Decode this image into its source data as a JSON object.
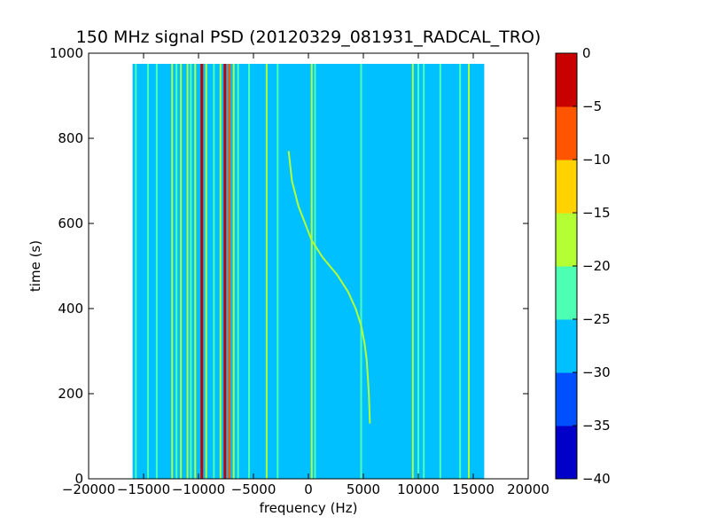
{
  "chart_data": {
    "type": "heatmap",
    "title": "150 MHz signal PSD (20120329_081931_RADCAL_TRO)",
    "xlabel": "frequency (Hz)",
    "ylabel": "time (s)",
    "xlim": [
      -20000,
      20000
    ],
    "ylim": [
      0,
      1000
    ],
    "x_ticks": [
      "−20000",
      "−15000",
      "−10000",
      "−5000",
      "0",
      "5000",
      "10000",
      "15000",
      "20000"
    ],
    "x_tick_values": [
      -20000,
      -15000,
      -10000,
      -5000,
      0,
      5000,
      10000,
      15000,
      20000
    ],
    "y_ticks": [
      "0",
      "200",
      "400",
      "600",
      "800",
      "1000"
    ],
    "y_tick_values": [
      0,
      200,
      400,
      600,
      800,
      1000
    ],
    "data_extent": {
      "freq_hz": [
        -16000,
        16000
      ],
      "time_s": [
        0,
        975
      ]
    },
    "background_level": -28,
    "colorbar": {
      "levels": [
        -40,
        -35,
        -30,
        -25,
        -20,
        -15,
        -10,
        -5,
        0
      ],
      "tick_labels": [
        "−40",
        "−35",
        "−30",
        "−25",
        "−20",
        "−15",
        "−10",
        "−5",
        "0"
      ],
      "colors": [
        "#0000c8",
        "#0050ff",
        "#00c0ff",
        "#4dffb3",
        "#b3ff33",
        "#ffd200",
        "#ff5500",
        "#c80000"
      ]
    },
    "vertical_lines": [
      {
        "freq": -15700,
        "level": -25
      },
      {
        "freq": -14600,
        "level": -22
      },
      {
        "freq": -13800,
        "level": -22
      },
      {
        "freq": -12400,
        "level": -18
      },
      {
        "freq": -12000,
        "level": -22
      },
      {
        "freq": -11600,
        "level": -18
      },
      {
        "freq": -11000,
        "level": -18
      },
      {
        "freq": -10700,
        "level": -22
      },
      {
        "freq": -10300,
        "level": -18
      },
      {
        "freq": -9700,
        "level": -3
      },
      {
        "freq": -9300,
        "level": -18
      },
      {
        "freq": -8600,
        "level": -22
      },
      {
        "freq": -8000,
        "level": -18
      },
      {
        "freq": -7600,
        "level": -3
      },
      {
        "freq": -7200,
        "level": -8
      },
      {
        "freq": -6800,
        "level": -18
      },
      {
        "freq": -6400,
        "level": -22
      },
      {
        "freq": -5400,
        "level": -22
      },
      {
        "freq": -3800,
        "level": -18
      },
      {
        "freq": -2800,
        "level": -22
      },
      {
        "freq": 300,
        "level": -18
      },
      {
        "freq": 600,
        "level": -22
      },
      {
        "freq": 4800,
        "level": -22
      },
      {
        "freq": 9500,
        "level": -18
      },
      {
        "freq": 10000,
        "level": -22
      },
      {
        "freq": 10500,
        "level": -22
      },
      {
        "freq": 12000,
        "level": -22
      },
      {
        "freq": 13800,
        "level": -22
      },
      {
        "freq": 14600,
        "level": -18
      }
    ],
    "drifting_signal": {
      "level": -18,
      "points": [
        {
          "time": 770,
          "freq": -1800
        },
        {
          "time": 700,
          "freq": -1500
        },
        {
          "time": 640,
          "freq": -900
        },
        {
          "time": 600,
          "freq": -300
        },
        {
          "time": 560,
          "freq": 300
        },
        {
          "time": 520,
          "freq": 1300
        },
        {
          "time": 480,
          "freq": 2600
        },
        {
          "time": 440,
          "freq": 3600
        },
        {
          "time": 400,
          "freq": 4300
        },
        {
          "time": 360,
          "freq": 4800
        },
        {
          "time": 320,
          "freq": 5100
        },
        {
          "time": 280,
          "freq": 5300
        },
        {
          "time": 240,
          "freq": 5400
        },
        {
          "time": 200,
          "freq": 5500
        },
        {
          "time": 130,
          "freq": 5600
        }
      ]
    }
  }
}
